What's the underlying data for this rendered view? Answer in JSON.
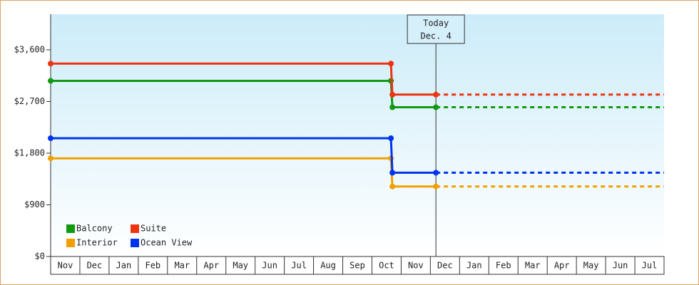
{
  "chart_data": {
    "type": "line",
    "categories": [
      "Nov",
      "Dec",
      "Jan",
      "Feb",
      "Mar",
      "Apr",
      "May",
      "Jun",
      "Jul",
      "Aug",
      "Sep",
      "Oct",
      "Nov",
      "Dec",
      "Jan",
      "Feb",
      "Mar",
      "Apr",
      "May",
      "Jun",
      "Jul"
    ],
    "xlim": [
      0,
      21
    ],
    "ylim": [
      0,
      4220
    ],
    "yticks": [
      {
        "value": 0,
        "label": "$0"
      },
      {
        "value": 900,
        "label": "$900"
      },
      {
        "value": 1800,
        "label": "$1,800"
      },
      {
        "value": 2700,
        "label": "$2,700"
      },
      {
        "value": 3600,
        "label": "$3,600"
      }
    ],
    "today": {
      "x": 13.19,
      "label": "Today",
      "date": "Dec. 4"
    },
    "legend": "lower left",
    "series": [
      {
        "name": "Balcony",
        "color": "#119911",
        "x": [
          0,
          11.65,
          11.7,
          13.19
        ],
        "values": [
          3060,
          3060,
          2600,
          2600
        ]
      },
      {
        "name": "Suite",
        "color": "#ee3311",
        "x": [
          0,
          11.65,
          11.7,
          13.19
        ],
        "values": [
          3360,
          3360,
          2820,
          2820
        ]
      },
      {
        "name": "Interior",
        "color": "#f0a000",
        "x": [
          0,
          11.65,
          11.7,
          13.19
        ],
        "values": [
          1710,
          1710,
          1220,
          1220
        ]
      },
      {
        "name": "Ocean View",
        "color": "#0033ee",
        "x": [
          0,
          11.65,
          11.7,
          13.19
        ],
        "values": [
          2060,
          2060,
          1460,
          1460
        ]
      }
    ]
  }
}
